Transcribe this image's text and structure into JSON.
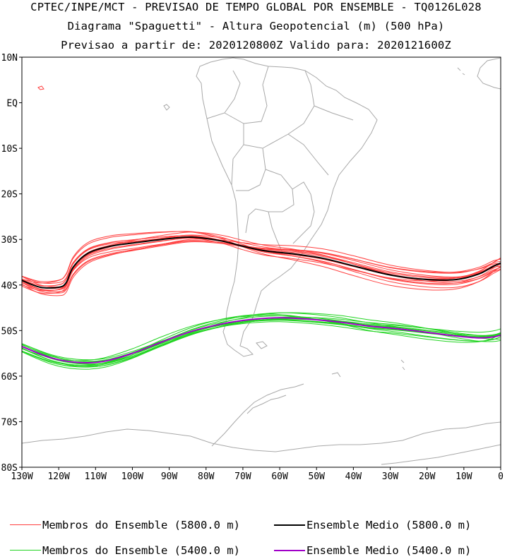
{
  "title": {
    "line1": "CPTEC/INPE/MCT - PREVISAO DE TEMPO GLOBAL POR ENSEMBLE - TQ0126L028",
    "line2": "Diagrama \"Spaguetti\" - Altura Geopotencial (m) (500 hPa)",
    "line3": "Previsao a partir de: 2020120800Z  Valido para: 2020121600Z"
  },
  "map": {
    "lat_labels": [
      "10N",
      "EQ",
      "10S",
      "20S",
      "30S",
      "40S",
      "50S",
      "60S",
      "70S",
      "80S"
    ],
    "lon_labels": [
      "130W",
      "120W",
      "110W",
      "100W",
      "90W",
      "80W",
      "70W",
      "60W",
      "50W",
      "40W",
      "30W",
      "20W",
      "10W",
      "0"
    ],
    "lat_range": [
      -80,
      10
    ],
    "lon_range": [
      -130,
      0
    ]
  },
  "colors": {
    "members_5800": "#ff4040",
    "mean_5800": "#000000",
    "members_5400": "#22d422",
    "mean_5400": "#a000c8",
    "coast": "#a8a8a8"
  },
  "chart_data": {
    "type": "line",
    "series": [
      {
        "name": "Ensemble Medio (5800.0 m)",
        "lon": [
          -130,
          -125,
          -120,
          -118,
          -116,
          -112,
          -106,
          -100,
          -92,
          -84,
          -76,
          -70,
          -64,
          -56,
          -48,
          -40,
          -30,
          -20,
          -12,
          -6,
          -2,
          0
        ],
        "lat": [
          -39,
          -40.5,
          -40.5,
          -39.5,
          -36,
          -33,
          -31.5,
          -30.8,
          -30,
          -29.5,
          -30.3,
          -31.5,
          -32.5,
          -33.2,
          -34.2,
          -35.8,
          -37.8,
          -38.8,
          -38.8,
          -37.6,
          -35.9,
          -35.2
        ]
      },
      {
        "name": "Ensemble Medio (5400.0 m)",
        "lon": [
          -130,
          -122,
          -115,
          -108,
          -100,
          -92,
          -84,
          -76,
          -68,
          -60,
          -52,
          -44,
          -36,
          -28,
          -20,
          -12,
          -6,
          -2,
          0
        ],
        "lat": [
          -53.5,
          -56,
          -57,
          -56.8,
          -55,
          -52.5,
          -50.2,
          -48.6,
          -47.6,
          -47.2,
          -47.5,
          -48.1,
          -49,
          -49.6,
          -50.4,
          -51.2,
          -51.6,
          -51.4,
          -51
        ]
      }
    ]
  },
  "legend": {
    "members_5800": "Membros do Ensemble (5800.0 m)",
    "mean_5800": "Ensemble Medio (5800.0 m)",
    "members_5400": "Membros do Ensemble (5400.0 m)",
    "mean_5400": "Ensemble Medio (5400.0 m)"
  }
}
